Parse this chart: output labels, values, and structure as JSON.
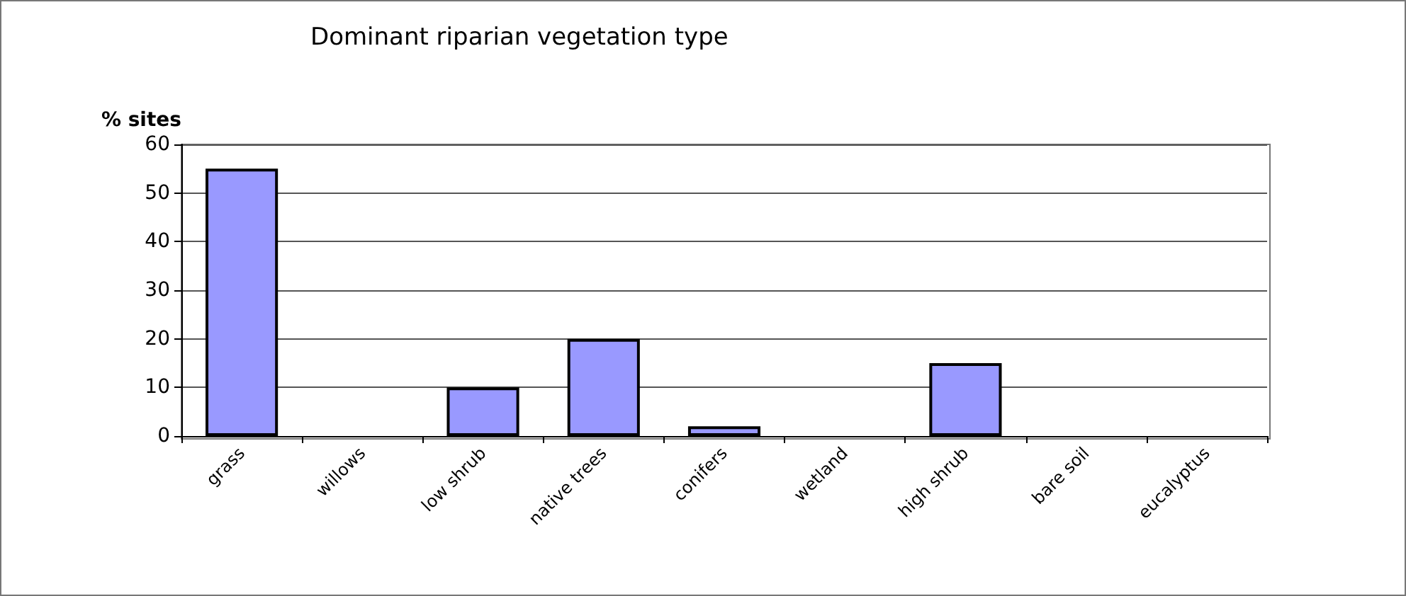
{
  "chart_data": {
    "type": "bar",
    "title": "Dominant riparian vegetation type",
    "ylabel": "% sites",
    "categories": [
      "grass",
      "willows",
      "low shrub",
      "native trees",
      "conifers",
      "wetland",
      "high shrub",
      "bare soil",
      "eucalyptus"
    ],
    "values": [
      55,
      0,
      10,
      20,
      2,
      0,
      15,
      0,
      0
    ],
    "color": "#9999ff",
    "ylim": [
      0,
      60
    ],
    "yticks": [
      0,
      10,
      20,
      30,
      40,
      50,
      60
    ],
    "grid": "y"
  }
}
